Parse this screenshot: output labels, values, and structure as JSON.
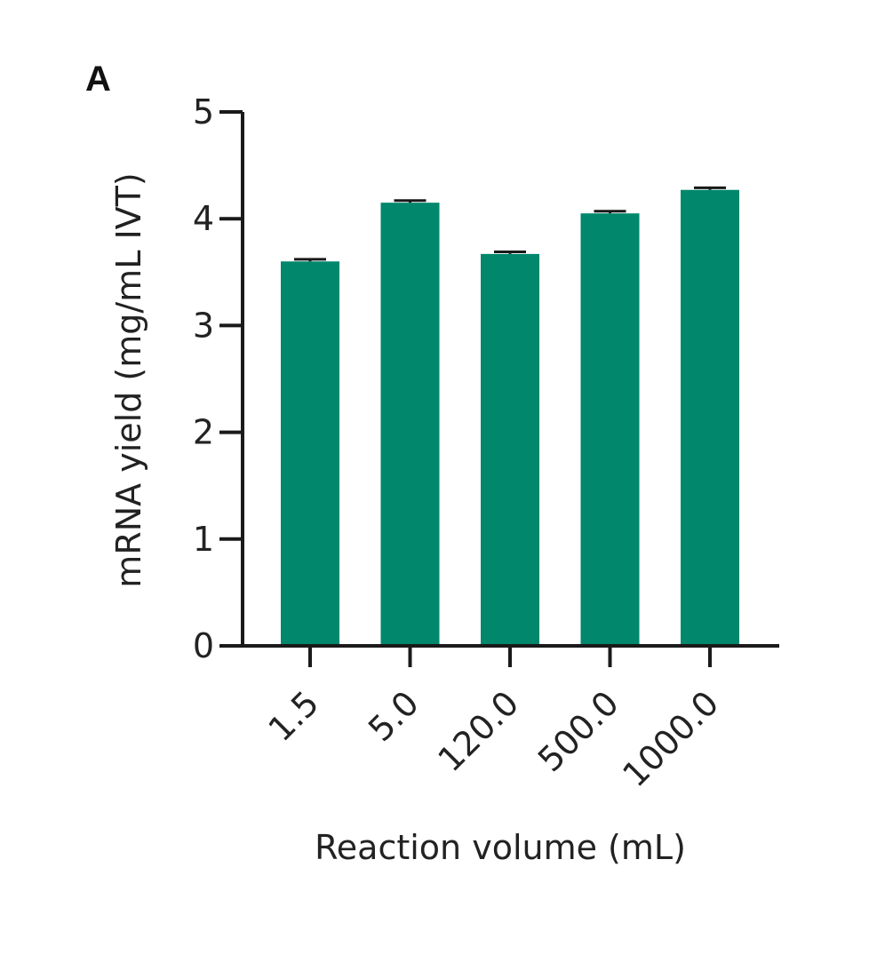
{
  "figure": {
    "panel_label": "A"
  },
  "chart_data": {
    "type": "bar",
    "categories": [
      "1.5",
      "5.0",
      "120.0",
      "500.0",
      "1000.0"
    ],
    "values": [
      3.6,
      4.15,
      3.67,
      4.05,
      4.27
    ],
    "errors": [
      0.02,
      0.02,
      0.02,
      0.02,
      0.02
    ],
    "xlabel": "Reaction volume (mL)",
    "ylabel": "mRNA yield (mg/mL IVT)",
    "ylim": [
      0,
      5
    ],
    "yticks": [
      0,
      1,
      2,
      3,
      4,
      5
    ],
    "grid": false,
    "legend": "none",
    "colors": {
      "bar": "#00876c",
      "axis": "#1a1a1a",
      "error_bar": "#1a1a1a"
    }
  }
}
